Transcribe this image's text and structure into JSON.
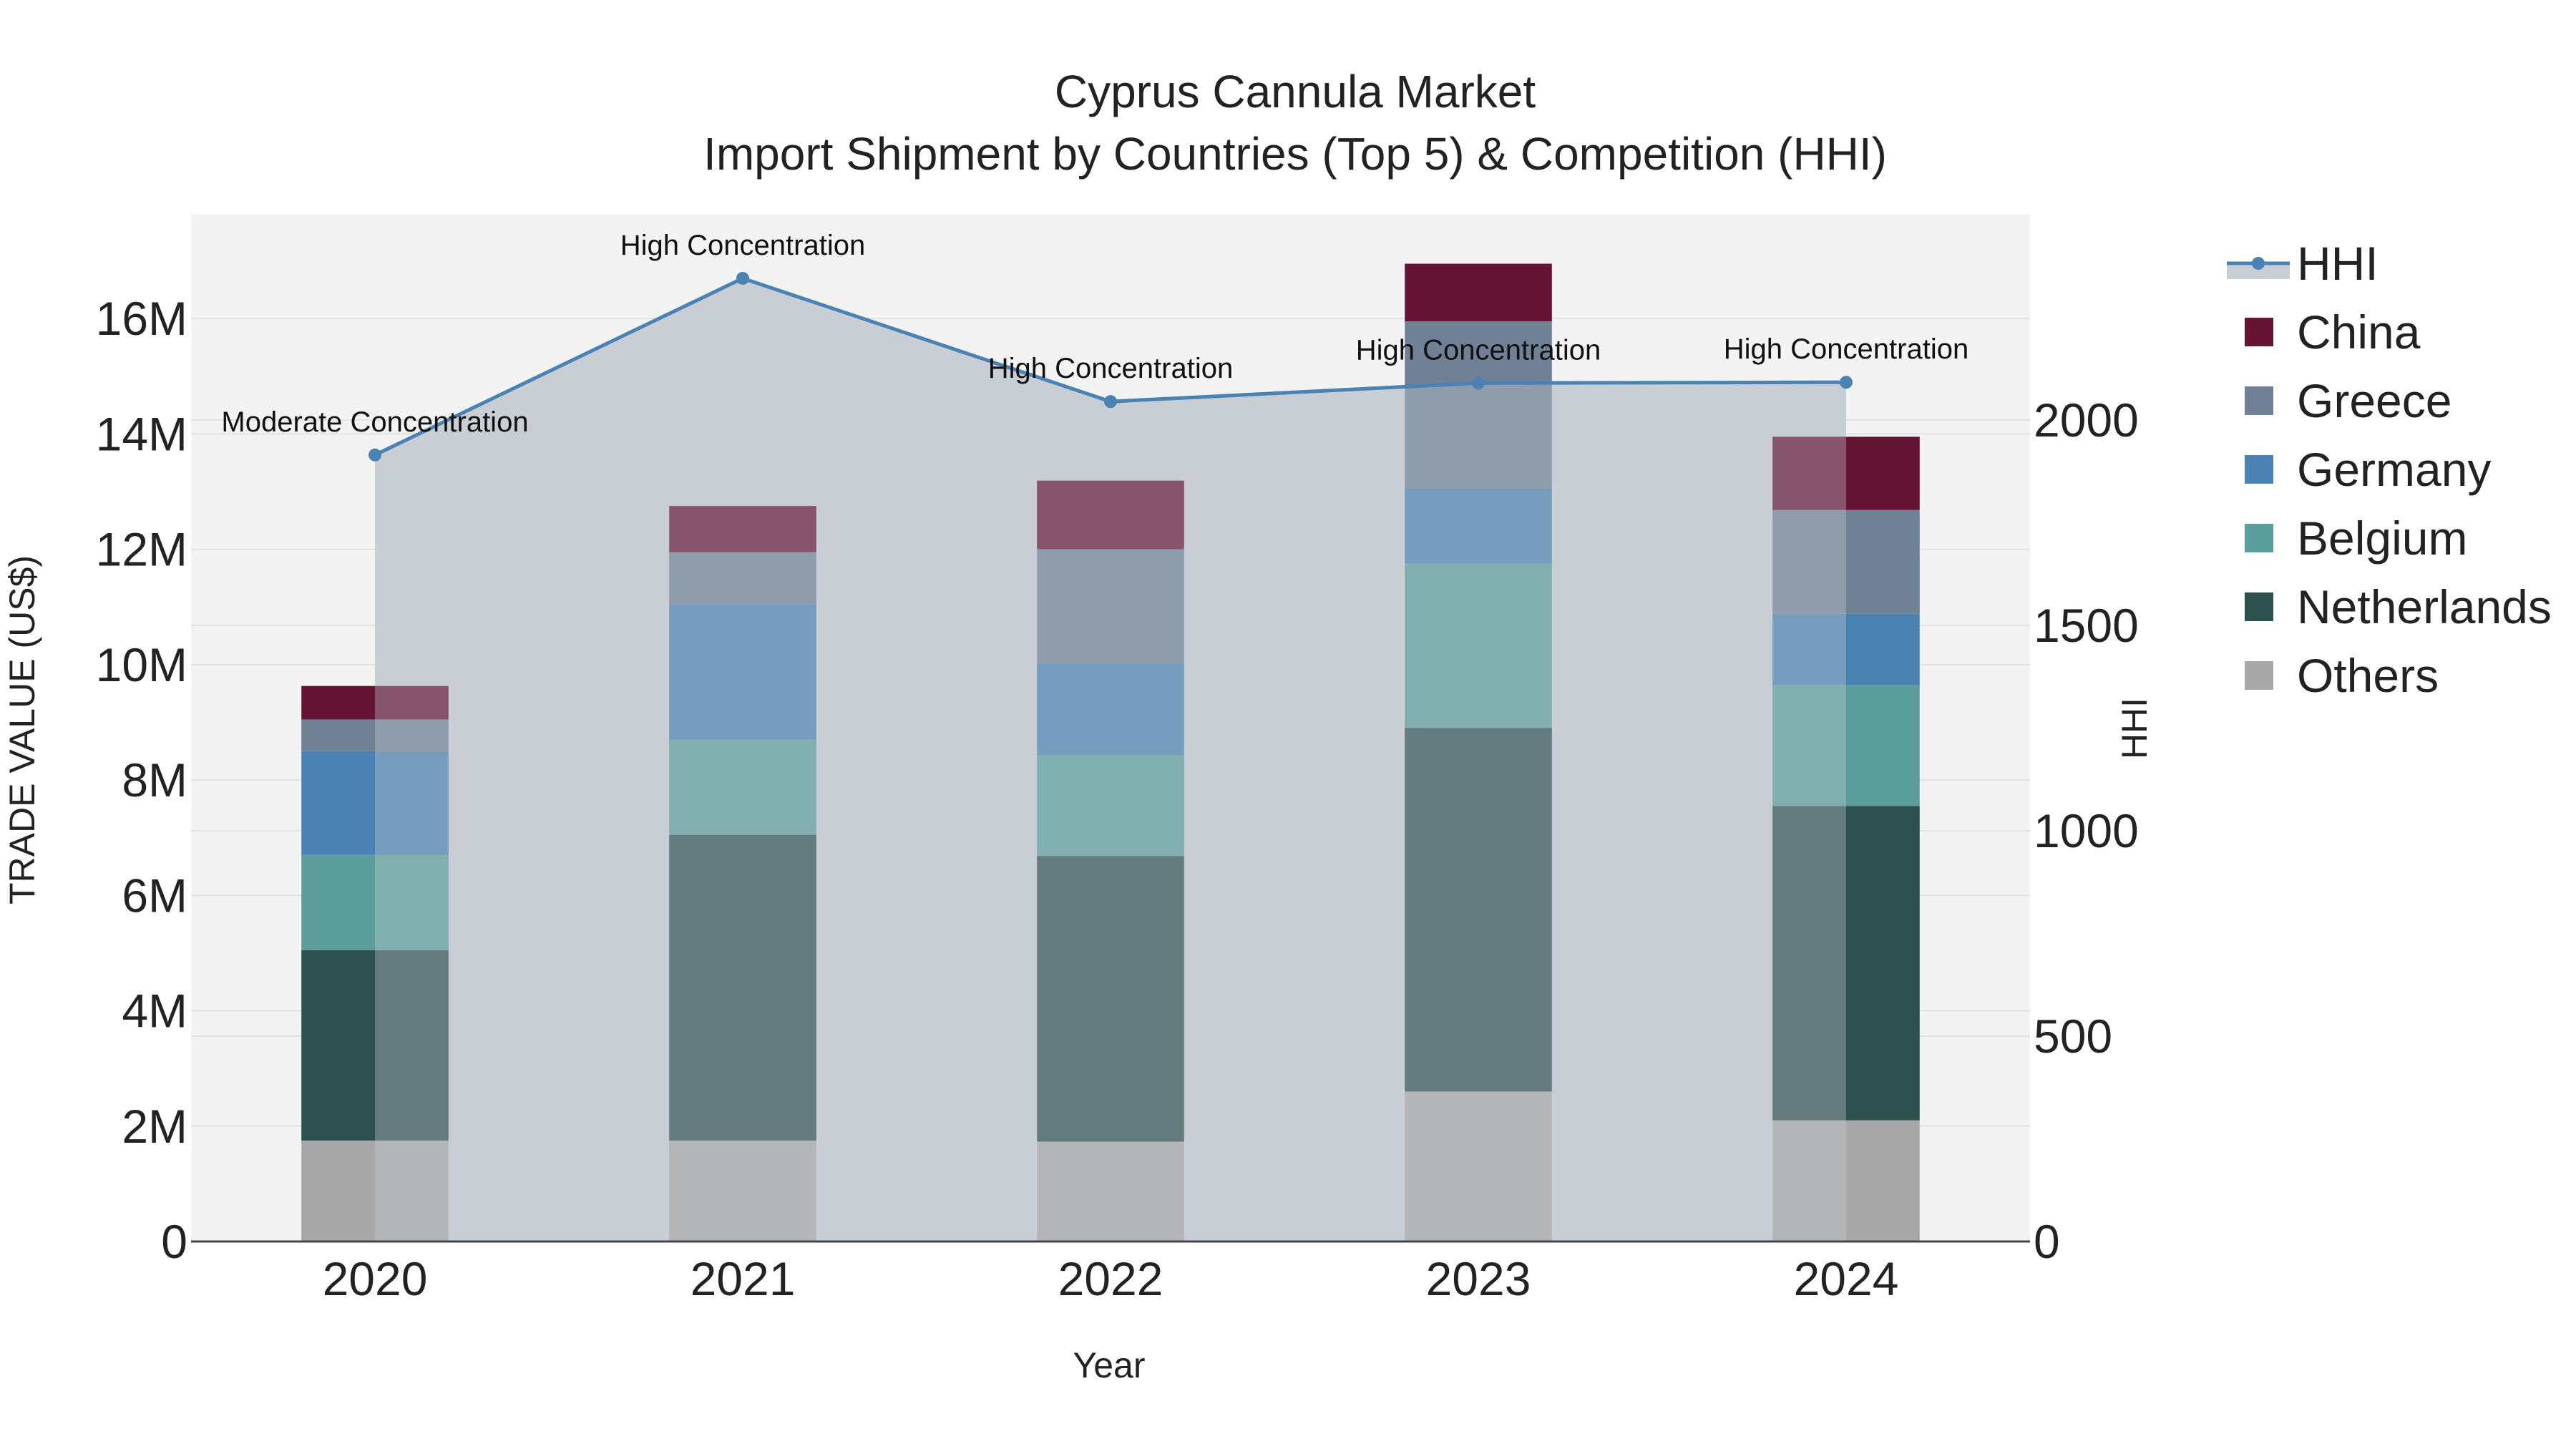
{
  "chart_data": {
    "type": "bar",
    "title": "Cyprus Cannula Market",
    "subtitle": "Import Shipment by Countries (Top 5) & Competition (HHI)",
    "xlabel": "Year",
    "ylabel": "TRADE VALUE (US$)",
    "y2label": "HHI",
    "categories": [
      "2020",
      "2021",
      "2022",
      "2023",
      "2024"
    ],
    "ylim": [
      0,
      17800000
    ],
    "y_ticks": [
      0,
      2000000,
      4000000,
      6000000,
      8000000,
      10000000,
      12000000,
      14000000,
      16000000
    ],
    "y_tick_labels": [
      "0",
      "2M",
      "4M",
      "6M",
      "8M",
      "10M",
      "12M",
      "14M",
      "16M"
    ],
    "y2lim": [
      0,
      2500
    ],
    "y2_ticks": [
      0,
      500,
      1000,
      1500,
      2000
    ],
    "y2_tick_labels": [
      "0",
      "500",
      "1000",
      "1500",
      "2000"
    ],
    "series": [
      {
        "name": "Others",
        "color": "#A8A8A8",
        "values": [
          1750000,
          1750000,
          1730000,
          2600000,
          2100000
        ]
      },
      {
        "name": "Netherlands",
        "color": "#2E504F",
        "values": [
          3300000,
          5300000,
          4950000,
          6300000,
          5450000
        ]
      },
      {
        "name": "Belgium",
        "color": "#5B9E9C",
        "values": [
          1650000,
          1650000,
          1750000,
          2850000,
          2100000
        ]
      },
      {
        "name": "Germany",
        "color": "#4A82B3",
        "values": [
          1800000,
          2350000,
          1580000,
          1300000,
          1230000
        ]
      },
      {
        "name": "Greece",
        "color": "#708196",
        "values": [
          550000,
          900000,
          1990000,
          2900000,
          1800000
        ]
      },
      {
        "name": "China",
        "color": "#651434",
        "values": [
          580000,
          800000,
          1190000,
          1000000,
          1270000
        ]
      }
    ],
    "hhi": {
      "name": "HHI",
      "color": "#4A82B3",
      "values": [
        1915,
        2345,
        2045,
        2090,
        2092
      ],
      "annotations": [
        "Moderate Concentration",
        "High Concentration",
        "High Concentration",
        "High Concentration",
        "High Concentration"
      ]
    },
    "legend_order": [
      "HHI",
      "China",
      "Greece",
      "Germany",
      "Belgium",
      "Netherlands",
      "Others"
    ],
    "legend_position": "right",
    "grid": true
  }
}
